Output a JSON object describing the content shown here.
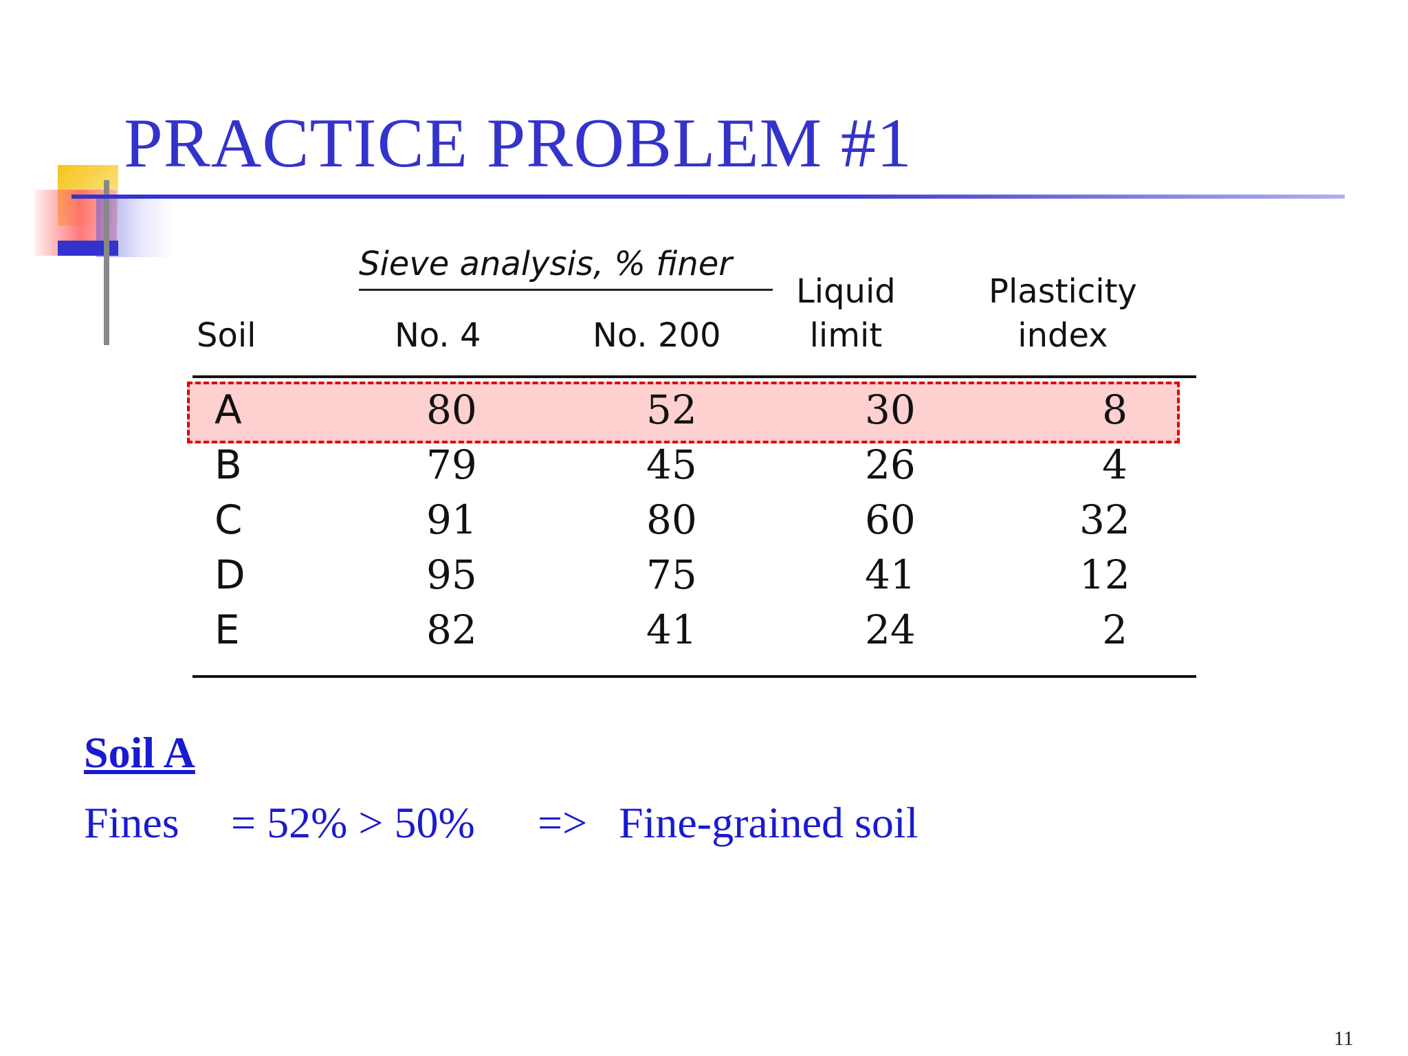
{
  "slide": {
    "title": "PRACTICE PROBLEM #1",
    "page_number": "11"
  },
  "table": {
    "group_header": "Sieve analysis, % finer",
    "headers": {
      "soil": "Soil",
      "no4": "No. 4",
      "no200": "No. 200",
      "liquid_limit_line1": "Liquid",
      "liquid_limit_line2": "limit",
      "plasticity_index_line1": "Plasticity",
      "plasticity_index_line2": "index"
    },
    "rows": [
      {
        "soil": "A",
        "no4": "80",
        "no200": "52",
        "ll": "30",
        "pi": "8"
      },
      {
        "soil": "B",
        "no4": "79",
        "no200": "45",
        "ll": "26",
        "pi": "4"
      },
      {
        "soil": "C",
        "no4": "91",
        "no200": "80",
        "ll": "60",
        "pi": "32"
      },
      {
        "soil": "D",
        "no4": "95",
        "no200": "75",
        "ll": "41",
        "pi": "12"
      },
      {
        "soil": "E",
        "no4": "82",
        "no200": "41",
        "ll": "24",
        "pi": "2"
      }
    ],
    "highlighted_row": "A",
    "highlight_color": "#e00000"
  },
  "solution": {
    "heading": "Soil A",
    "fines_label": "Fines",
    "fines_expr": "= 52% > 50%",
    "arrow": "=>",
    "result": "Fine-grained soil"
  },
  "colors": {
    "title": "#3333cc",
    "body_text": "#1a1ad0"
  }
}
